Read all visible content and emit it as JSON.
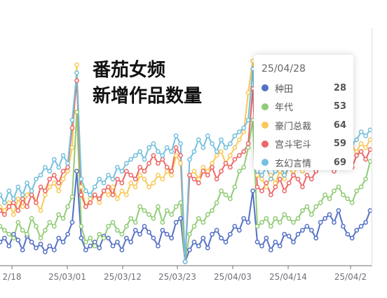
{
  "title_lines": [
    "番茄女频",
    "新增作品数量"
  ],
  "tooltip": {
    "date": "25/04/28",
    "rows": [
      {
        "name": "种田",
        "value": "28",
        "color": "#5470c6"
      },
      {
        "name": "年代",
        "value": "53",
        "color": "#91cc75"
      },
      {
        "name": "豪门总裁",
        "value": "64",
        "color": "#fac858"
      },
      {
        "name": "宫斗宅斗",
        "value": "59",
        "color": "#ee6666"
      },
      {
        "name": "玄幻言情",
        "value": "69",
        "color": "#73c0de"
      }
    ]
  },
  "chart_data": {
    "type": "line",
    "title": "番茄女频 新增作品数量",
    "x_tick_labels": [
      "2/18",
      "25/03/01",
      "25/03/12",
      "25/03/23",
      "25/04/03",
      "25/04/14",
      "25/04/2"
    ],
    "x_start": "25/02/16",
    "x_end": "25/04/28",
    "ylim": [
      0,
      110
    ],
    "grid": false,
    "series": [
      {
        "name": "种田",
        "color": "#5470c6",
        "values": [
          12,
          14,
          10,
          16,
          13,
          8,
          15,
          12,
          9,
          11,
          7,
          10,
          8,
          14,
          12,
          16,
          22,
          48,
          14,
          8,
          10,
          12,
          9,
          15,
          14,
          10,
          12,
          8,
          14,
          12,
          18,
          16,
          20,
          17,
          14,
          10,
          18,
          16,
          14,
          22,
          24,
          2,
          8,
          12,
          10,
          14,
          9,
          16,
          18,
          14,
          12,
          16,
          20,
          18,
          24,
          22,
          38,
          12,
          10,
          14,
          8,
          12,
          10,
          16,
          15,
          12,
          16,
          18,
          20,
          18,
          14,
          22,
          24,
          26,
          22,
          28,
          20,
          16,
          14,
          18,
          20,
          22,
          28
        ]
      },
      {
        "name": "年代",
        "color": "#91cc75",
        "values": [
          20,
          18,
          16,
          14,
          22,
          18,
          16,
          24,
          20,
          14,
          18,
          22,
          20,
          26,
          24,
          30,
          35,
          78,
          20,
          12,
          14,
          10,
          16,
          14,
          20,
          22,
          18,
          16,
          20,
          24,
          22,
          30,
          28,
          26,
          24,
          30,
          22,
          28,
          26,
          30,
          32,
          2,
          16,
          20,
          24,
          22,
          26,
          28,
          32,
          38,
          36,
          34,
          40,
          48,
          50,
          60,
          74,
          20,
          22,
          24,
          20,
          24,
          22,
          26,
          24,
          22,
          24,
          28,
          30,
          26,
          30,
          32,
          36,
          34,
          38,
          40,
          36,
          34,
          32,
          38,
          40,
          44,
          53
        ]
      },
      {
        "name": "豪门总裁",
        "color": "#fac858",
        "values": [
          30,
          28,
          32,
          26,
          34,
          30,
          36,
          38,
          32,
          28,
          36,
          40,
          42,
          38,
          44,
          48,
          60,
          102,
          40,
          30,
          34,
          36,
          32,
          38,
          36,
          40,
          34,
          38,
          36,
          42,
          40,
          46,
          44,
          40,
          42,
          46,
          44,
          48,
          46,
          56,
          52,
          2,
          46,
          48,
          44,
          50,
          48,
          52,
          56,
          58,
          52,
          56,
          60,
          64,
          68,
          88,
          104,
          46,
          44,
          40,
          46,
          42,
          48,
          44,
          50,
          46,
          52,
          48,
          50,
          54,
          52,
          56,
          54,
          58,
          56,
          60,
          58,
          62,
          60,
          58,
          62,
          60,
          64
        ]
      },
      {
        "name": "宫斗宅斗",
        "color": "#ee6666",
        "values": [
          28,
          26,
          30,
          32,
          28,
          34,
          30,
          36,
          32,
          40,
          38,
          44,
          46,
          42,
          48,
          50,
          70,
          94,
          36,
          30,
          32,
          36,
          34,
          38,
          40,
          36,
          44,
          42,
          48,
          46,
          44,
          50,
          48,
          52,
          56,
          52,
          54,
          50,
          48,
          60,
          56,
          2,
          46,
          44,
          42,
          48,
          46,
          50,
          44,
          48,
          52,
          50,
          54,
          56,
          58,
          62,
          90,
          40,
          38,
          42,
          36,
          40,
          44,
          38,
          42,
          46,
          44,
          40,
          46,
          44,
          48,
          52,
          50,
          54,
          48,
          56,
          52,
          54,
          50,
          56,
          58,
          54,
          59
        ]
      },
      {
        "name": "玄幻言情",
        "color": "#73c0de",
        "values": [
          36,
          32,
          38,
          34,
          40,
          36,
          42,
          38,
          44,
          46,
          50,
          48,
          54,
          50,
          56,
          52,
          74,
          98,
          44,
          38,
          36,
          40,
          44,
          42,
          46,
          44,
          50,
          48,
          52,
          54,
          56,
          58,
          54,
          60,
          62,
          58,
          56,
          60,
          58,
          66,
          62,
          2,
          54,
          58,
          64,
          60,
          66,
          62,
          58,
          64,
          60,
          62,
          66,
          68,
          70,
          74,
          100,
          48,
          46,
          50,
          44,
          48,
          52,
          46,
          50,
          54,
          52,
          50,
          54,
          56,
          58,
          54,
          60,
          58,
          62,
          60,
          64,
          66,
          62,
          64,
          68,
          66,
          69
        ]
      }
    ]
  }
}
